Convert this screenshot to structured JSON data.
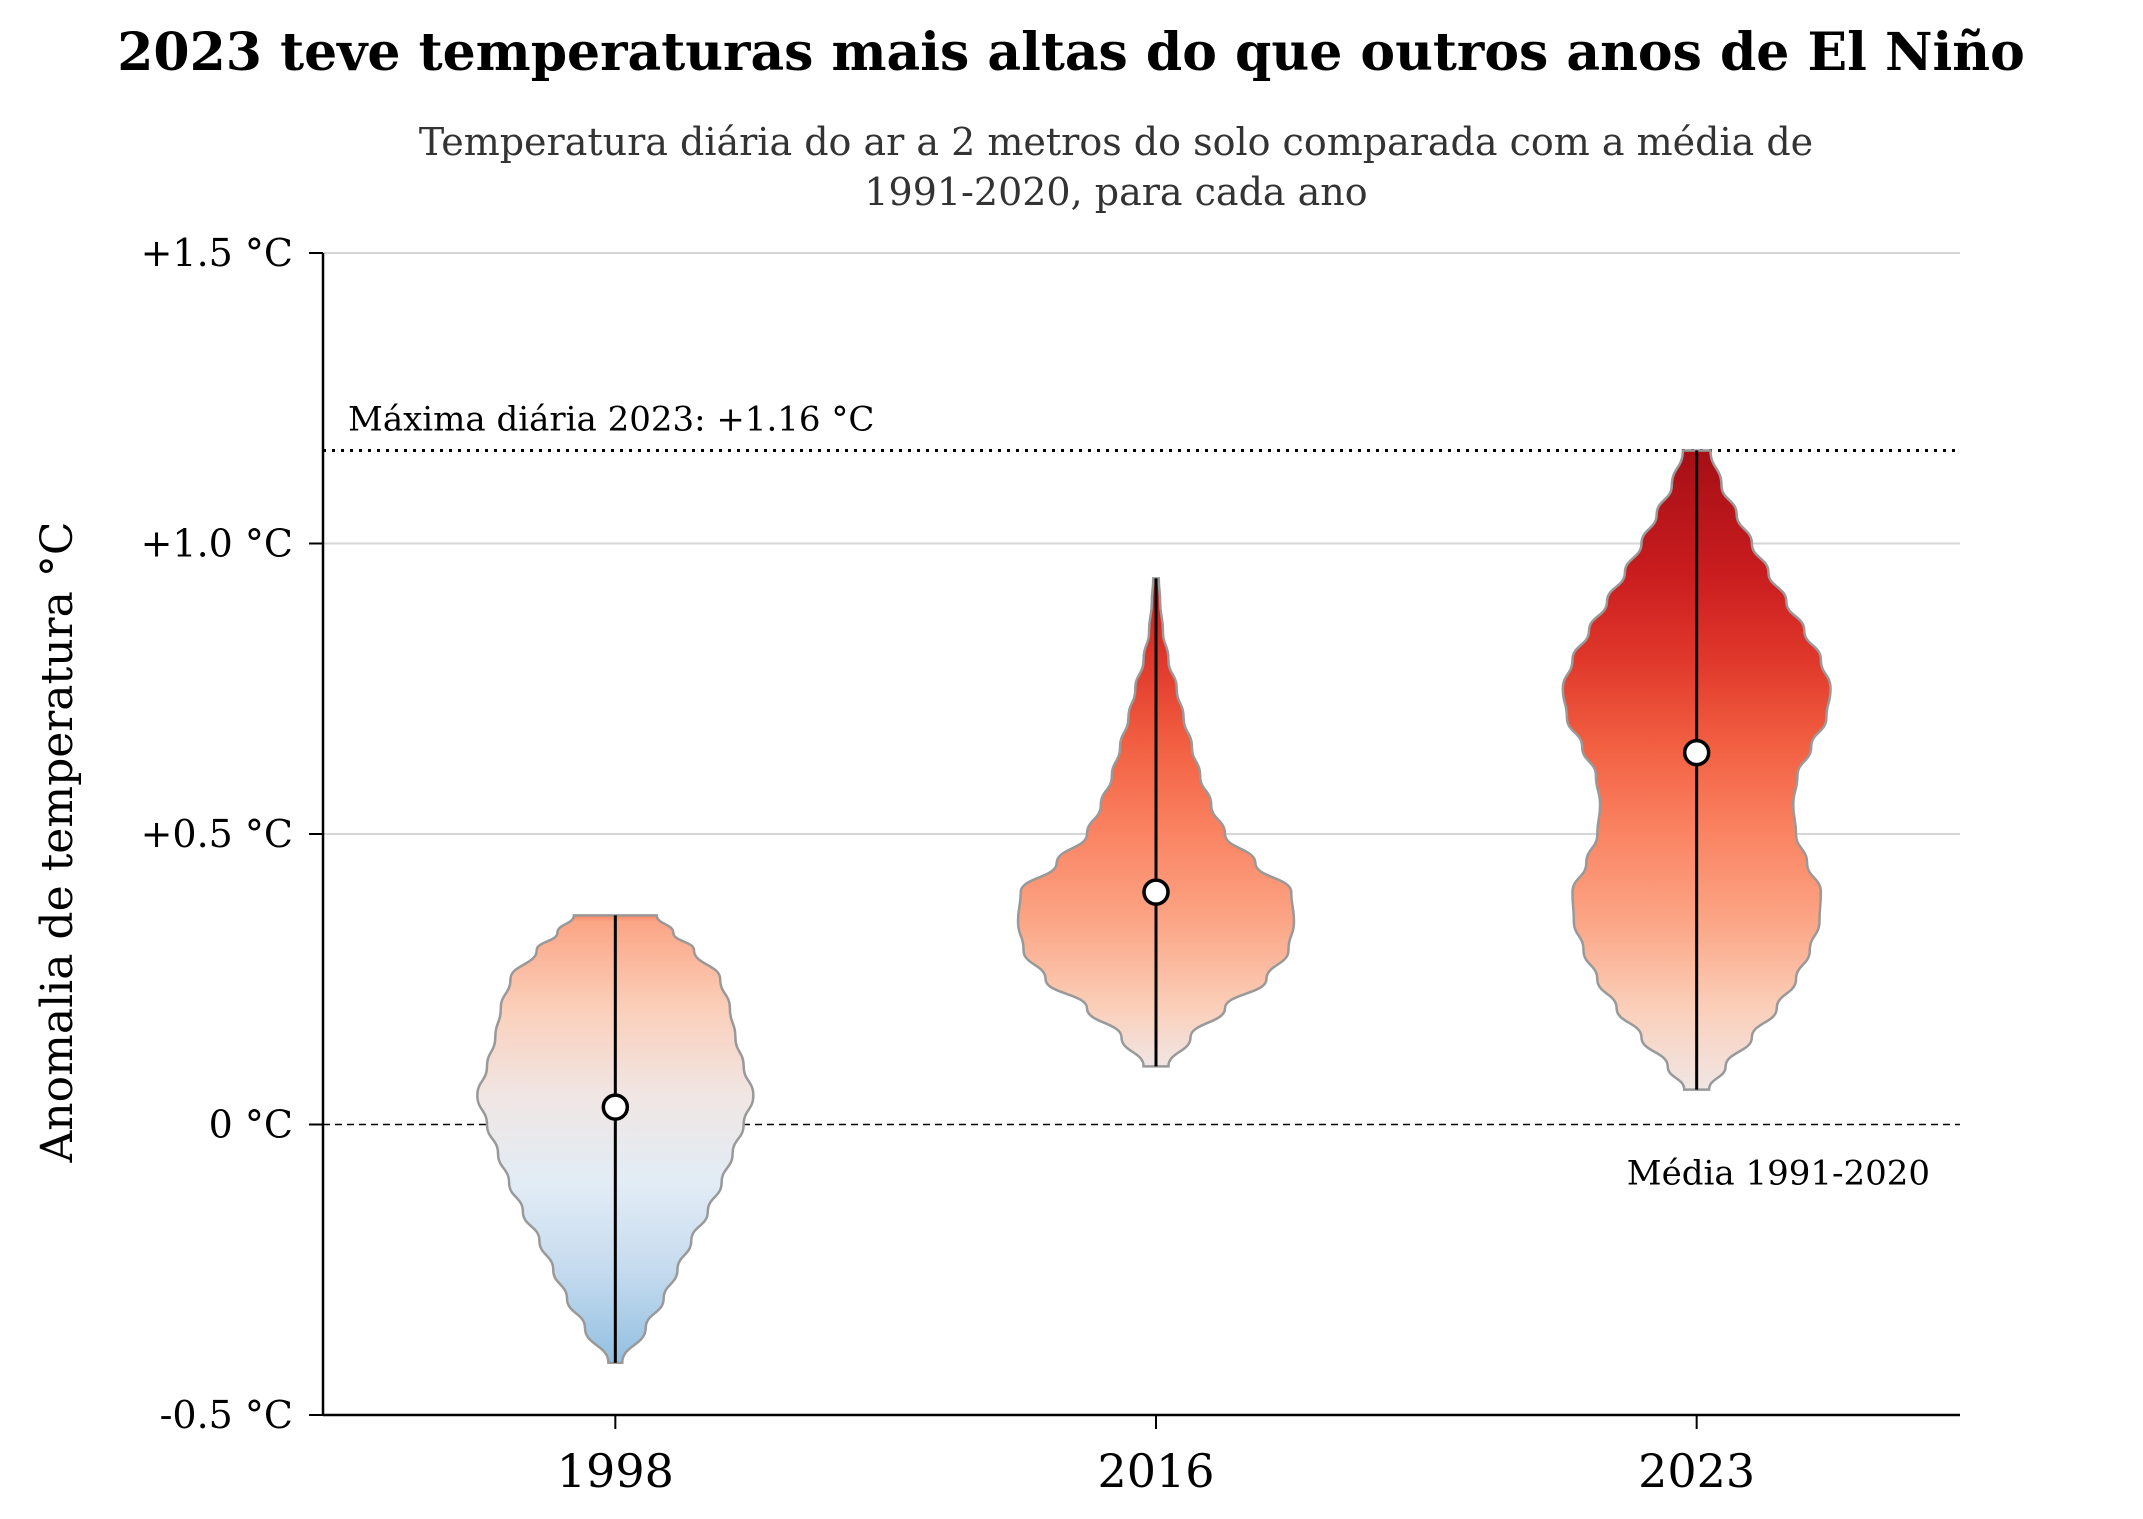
{
  "chart_data": {
    "type": "violin",
    "title": "2023 teve temperaturas mais altas do que outros anos de El Niño",
    "subtitle_lines": [
      "Temperatura diária do ar a 2 metros do solo comparada com a média de",
      "1991-2020, para cada ano"
    ],
    "ylabel": "Anomalia de temperatura °C",
    "xlabel": "",
    "ylim": [
      -0.5,
      1.5
    ],
    "yticks": [
      -0.5,
      0,
      0.5,
      1.0,
      1.5
    ],
    "ytick_labels": [
      "-0.5 °C",
      "0 °C",
      "+0.5 °C",
      "+1.0 °C",
      "+1.5 °C"
    ],
    "grid": "horizontal",
    "categories": [
      "1998",
      "2016",
      "2023"
    ],
    "series": [
      {
        "category": "1998",
        "min": -0.41,
        "max": 0.36,
        "median": 0.03,
        "density": [
          [
            -0.41,
            0.05
          ],
          [
            -0.35,
            0.22
          ],
          [
            -0.3,
            0.35
          ],
          [
            -0.25,
            0.45
          ],
          [
            -0.2,
            0.55
          ],
          [
            -0.15,
            0.67
          ],
          [
            -0.1,
            0.77
          ],
          [
            -0.05,
            0.85
          ],
          [
            0.0,
            0.93
          ],
          [
            0.05,
            1.0
          ],
          [
            0.1,
            0.93
          ],
          [
            0.15,
            0.87
          ],
          [
            0.2,
            0.83
          ],
          [
            0.25,
            0.76
          ],
          [
            0.3,
            0.57
          ],
          [
            0.33,
            0.42
          ],
          [
            0.36,
            0.3
          ]
        ]
      },
      {
        "category": "2016",
        "min": 0.1,
        "max": 0.94,
        "median": 0.4,
        "density": [
          [
            0.1,
            0.09
          ],
          [
            0.15,
            0.25
          ],
          [
            0.2,
            0.5
          ],
          [
            0.25,
            0.8
          ],
          [
            0.3,
            0.96
          ],
          [
            0.35,
            1.0
          ],
          [
            0.4,
            0.98
          ],
          [
            0.45,
            0.72
          ],
          [
            0.5,
            0.5
          ],
          [
            0.55,
            0.4
          ],
          [
            0.6,
            0.32
          ],
          [
            0.65,
            0.26
          ],
          [
            0.7,
            0.2
          ],
          [
            0.75,
            0.15
          ],
          [
            0.8,
            0.09
          ],
          [
            0.85,
            0.05
          ],
          [
            0.9,
            0.03
          ],
          [
            0.94,
            0.02
          ]
        ]
      },
      {
        "category": "2023",
        "min": 0.06,
        "max": 1.16,
        "median": 0.64,
        "density": [
          [
            0.06,
            0.09
          ],
          [
            0.1,
            0.21
          ],
          [
            0.15,
            0.4
          ],
          [
            0.2,
            0.58
          ],
          [
            0.25,
            0.72
          ],
          [
            0.3,
            0.82
          ],
          [
            0.35,
            0.89
          ],
          [
            0.4,
            0.9
          ],
          [
            0.45,
            0.8
          ],
          [
            0.5,
            0.72
          ],
          [
            0.55,
            0.7
          ],
          [
            0.6,
            0.73
          ],
          [
            0.65,
            0.83
          ],
          [
            0.7,
            0.94
          ],
          [
            0.75,
            0.97
          ],
          [
            0.8,
            0.9
          ],
          [
            0.85,
            0.78
          ],
          [
            0.9,
            0.65
          ],
          [
            0.95,
            0.52
          ],
          [
            1.0,
            0.4
          ],
          [
            1.05,
            0.29
          ],
          [
            1.1,
            0.18
          ],
          [
            1.16,
            0.1
          ]
        ]
      }
    ],
    "reference_lines": [
      {
        "value": 1.16,
        "style": "dotted",
        "label": "Máxima diária 2023: +1.16 °C"
      },
      {
        "value": 0,
        "style": "dashed",
        "label": "Média 1991-2020"
      }
    ],
    "colors": {
      "cold": "#8fbde0",
      "neutral": "#ece8e8",
      "warm": "#f4a582",
      "hot": "#d62f27",
      "darkest": "#a50f15",
      "violin_edge": "#999999",
      "grid": "#d6d6d6"
    },
    "color_scale": [
      [
        -0.45,
        "#92c0e1"
      ],
      [
        -0.25,
        "#c6dbef"
      ],
      [
        -0.1,
        "#e2ecf5"
      ],
      [
        0.05,
        "#f0e6e4"
      ],
      [
        0.2,
        "#fbcfba"
      ],
      [
        0.35,
        "#fba585"
      ],
      [
        0.5,
        "#fa8463"
      ],
      [
        0.65,
        "#f26042"
      ],
      [
        0.8,
        "#e0382b"
      ],
      [
        0.95,
        "#c91c1f"
      ],
      [
        1.16,
        "#a50f15"
      ]
    ]
  }
}
